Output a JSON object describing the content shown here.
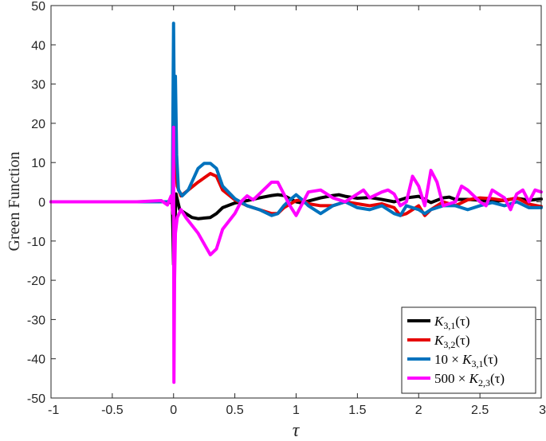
{
  "chart_data": {
    "type": "line",
    "title": "",
    "xlabel": "τ",
    "ylabel": "Green Function",
    "xlim": [
      -1,
      3
    ],
    "ylim": [
      -50,
      50
    ],
    "xticks": [
      "-1",
      "-0.5",
      "0",
      "0.5",
      "1",
      "1.5",
      "2",
      "2.5",
      "3"
    ],
    "yticks": [
      "50",
      "40",
      "30",
      "20",
      "10",
      "0",
      "-10",
      "-20",
      "-30",
      "-40",
      "-50"
    ],
    "grid": false,
    "legend_position": "bottom-right",
    "series": [
      {
        "name": "K3,1(τ)",
        "legend_main": "K",
        "legend_sub": "3,1",
        "legend_prefix": "",
        "legend_suffix": "(τ)",
        "color": "#000000",
        "points": [
          [
            -1,
            0
          ],
          [
            -0.2,
            0
          ],
          [
            -0.05,
            0
          ],
          [
            -0.01,
            -0.3
          ],
          [
            0,
            -16
          ],
          [
            0.008,
            -8
          ],
          [
            0.02,
            2
          ],
          [
            0.05,
            -2
          ],
          [
            0.1,
            -3
          ],
          [
            0.15,
            -4
          ],
          [
            0.2,
            -4.3
          ],
          [
            0.3,
            -4
          ],
          [
            0.35,
            -3
          ],
          [
            0.4,
            -1.5
          ],
          [
            0.5,
            -0.3
          ],
          [
            0.6,
            0.3
          ],
          [
            0.7,
            1
          ],
          [
            0.8,
            1.6
          ],
          [
            0.85,
            1.8
          ],
          [
            0.9,
            1.6
          ],
          [
            1.0,
            0
          ],
          [
            1.05,
            -0.3
          ],
          [
            1.1,
            0.2
          ],
          [
            1.2,
            1
          ],
          [
            1.3,
            1.6
          ],
          [
            1.35,
            1.8
          ],
          [
            1.4,
            1.4
          ],
          [
            1.5,
            0.9
          ],
          [
            1.6,
            1.1
          ],
          [
            1.7,
            0.6
          ],
          [
            1.8,
            0
          ],
          [
            1.85,
            0.5
          ],
          [
            1.9,
            1
          ],
          [
            2.0,
            1.4
          ],
          [
            2.05,
            0.6
          ],
          [
            2.1,
            -0.2
          ],
          [
            2.2,
            1
          ],
          [
            2.25,
            1.2
          ],
          [
            2.3,
            0.6
          ],
          [
            2.4,
            0.6
          ],
          [
            2.5,
            0.4
          ],
          [
            2.6,
            0
          ],
          [
            2.7,
            0.4
          ],
          [
            2.8,
            0.9
          ],
          [
            2.9,
            0.4
          ],
          [
            3.0,
            0.7
          ]
        ]
      },
      {
        "name": "K3,2(τ)",
        "legend_main": "K",
        "legend_sub": "3,2",
        "legend_prefix": "",
        "legend_suffix": "(τ)",
        "color": "#e60000",
        "points": [
          [
            -1,
            0
          ],
          [
            -0.2,
            0
          ],
          [
            -0.05,
            0
          ],
          [
            -0.01,
            0.3
          ],
          [
            0,
            16
          ],
          [
            0.01,
            11
          ],
          [
            0.03,
            4
          ],
          [
            0.06,
            1.5
          ],
          [
            0.1,
            2.5
          ],
          [
            0.2,
            5
          ],
          [
            0.3,
            7.2
          ],
          [
            0.35,
            6.5
          ],
          [
            0.4,
            3
          ],
          [
            0.5,
            0.5
          ],
          [
            0.6,
            -1
          ],
          [
            0.7,
            -2
          ],
          [
            0.8,
            -3
          ],
          [
            0.85,
            -3
          ],
          [
            0.9,
            -1.5
          ],
          [
            1.0,
            0.3
          ],
          [
            1.05,
            0.5
          ],
          [
            1.1,
            -0.5
          ],
          [
            1.2,
            -1
          ],
          [
            1.3,
            -1
          ],
          [
            1.4,
            0
          ],
          [
            1.5,
            -0.5
          ],
          [
            1.6,
            -1
          ],
          [
            1.7,
            -0.5
          ],
          [
            1.8,
            -1.5
          ],
          [
            1.85,
            -3.5
          ],
          [
            1.9,
            -3
          ],
          [
            2.0,
            -1
          ],
          [
            2.05,
            -3.5
          ],
          [
            2.1,
            -2
          ],
          [
            2.2,
            0
          ],
          [
            2.3,
            -1
          ],
          [
            2.4,
            0.5
          ],
          [
            2.5,
            1
          ],
          [
            2.6,
            0.8
          ],
          [
            2.7,
            0.3
          ],
          [
            2.8,
            1
          ],
          [
            2.9,
            -0.6
          ],
          [
            3.0,
            -1.2
          ]
        ]
      },
      {
        "name": "10 × K3,1(τ)",
        "legend_main": "K",
        "legend_sub": "3,1",
        "legend_prefix": "10 × ",
        "legend_suffix": "(τ)",
        "color": "#0072bd",
        "points": [
          [
            -1,
            0
          ],
          [
            -0.2,
            0
          ],
          [
            -0.05,
            0
          ],
          [
            -0.01,
            0.5
          ],
          [
            0,
            45.5
          ],
          [
            0.008,
            15
          ],
          [
            0.015,
            32
          ],
          [
            0.025,
            12
          ],
          [
            0.04,
            3
          ],
          [
            0.07,
            1.5
          ],
          [
            0.12,
            3
          ],
          [
            0.2,
            8.5
          ],
          [
            0.25,
            9.8
          ],
          [
            0.3,
            9.8
          ],
          [
            0.35,
            8.5
          ],
          [
            0.4,
            4
          ],
          [
            0.5,
            0.8
          ],
          [
            0.6,
            -1
          ],
          [
            0.7,
            -2
          ],
          [
            0.8,
            -3.5
          ],
          [
            0.85,
            -3
          ],
          [
            0.9,
            -1
          ],
          [
            0.95,
            0.5
          ],
          [
            1.0,
            1.8
          ],
          [
            1.05,
            0.5
          ],
          [
            1.1,
            -1
          ],
          [
            1.2,
            -3
          ],
          [
            1.3,
            -1
          ],
          [
            1.4,
            0
          ],
          [
            1.5,
            -1.5
          ],
          [
            1.6,
            -2
          ],
          [
            1.7,
            -1
          ],
          [
            1.8,
            -3
          ],
          [
            1.85,
            -3.5
          ],
          [
            1.9,
            -1
          ],
          [
            2.0,
            -2
          ],
          [
            2.05,
            -3
          ],
          [
            2.1,
            -2
          ],
          [
            2.2,
            -1
          ],
          [
            2.3,
            -1
          ],
          [
            2.4,
            -2
          ],
          [
            2.5,
            -1
          ],
          [
            2.6,
            -0.2
          ],
          [
            2.7,
            -1
          ],
          [
            2.8,
            0
          ],
          [
            2.9,
            -1.5
          ],
          [
            3.0,
            -1.5
          ]
        ]
      },
      {
        "name": "500 × K2,3(τ)",
        "legend_main": "K",
        "legend_sub": "2,3",
        "legend_prefix": "500 × ",
        "legend_suffix": "(τ)",
        "color": "#ff00ff",
        "points": [
          [
            -1,
            0
          ],
          [
            -0.3,
            0
          ],
          [
            -0.1,
            0.3
          ],
          [
            -0.05,
            -0.8
          ],
          [
            -0.02,
            1.5
          ],
          [
            -0.005,
            -3
          ],
          [
            0,
            19
          ],
          [
            0.003,
            -46
          ],
          [
            0.008,
            -20
          ],
          [
            0.015,
            -8
          ],
          [
            0.03,
            -4
          ],
          [
            0.06,
            -2
          ],
          [
            0.1,
            -4
          ],
          [
            0.2,
            -8
          ],
          [
            0.3,
            -13.5
          ],
          [
            0.35,
            -12
          ],
          [
            0.4,
            -7
          ],
          [
            0.5,
            -3
          ],
          [
            0.55,
            0
          ],
          [
            0.6,
            1.5
          ],
          [
            0.65,
            0.5
          ],
          [
            0.7,
            2
          ],
          [
            0.8,
            5
          ],
          [
            0.85,
            5
          ],
          [
            0.9,
            2
          ],
          [
            0.95,
            -1
          ],
          [
            1.0,
            -3.5
          ],
          [
            1.05,
            -0.5
          ],
          [
            1.1,
            2.5
          ],
          [
            1.2,
            3
          ],
          [
            1.3,
            1
          ],
          [
            1.4,
            0
          ],
          [
            1.5,
            2
          ],
          [
            1.55,
            3
          ],
          [
            1.6,
            1
          ],
          [
            1.7,
            2.5
          ],
          [
            1.75,
            3
          ],
          [
            1.8,
            2
          ],
          [
            1.85,
            -1
          ],
          [
            1.9,
            0
          ],
          [
            1.95,
            6.5
          ],
          [
            2.0,
            4
          ],
          [
            2.05,
            -1
          ],
          [
            2.1,
            8
          ],
          [
            2.15,
            5
          ],
          [
            2.2,
            -1
          ],
          [
            2.3,
            0
          ],
          [
            2.35,
            4
          ],
          [
            2.4,
            3
          ],
          [
            2.5,
            0
          ],
          [
            2.55,
            -1
          ],
          [
            2.6,
            3
          ],
          [
            2.7,
            1
          ],
          [
            2.75,
            -2
          ],
          [
            2.8,
            2
          ],
          [
            2.85,
            3
          ],
          [
            2.9,
            0
          ],
          [
            2.95,
            3
          ],
          [
            3.0,
            2.5
          ]
        ]
      }
    ]
  }
}
